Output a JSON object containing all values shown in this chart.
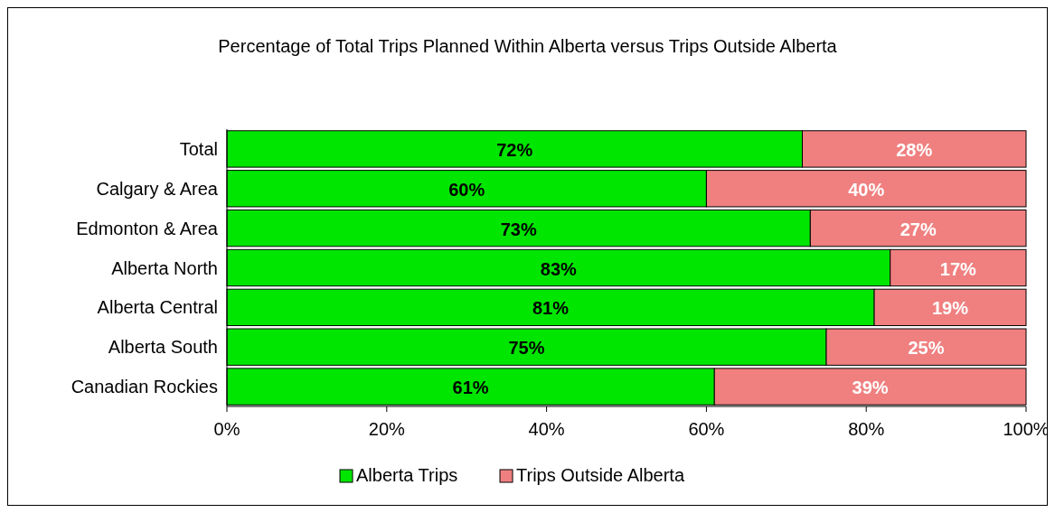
{
  "chart_data": {
    "type": "bar",
    "orientation": "horizontal",
    "stacked": true,
    "title": "Percentage of Total Trips Planned Within Alberta versus Trips Outside Alberta",
    "categories": [
      "Total",
      "Calgary & Area",
      "Edmonton & Area",
      "Alberta North",
      "Alberta Central",
      "Alberta South",
      "Canadian Rockies"
    ],
    "series": [
      {
        "name": "Alberta Trips",
        "color": "#00e600",
        "values": [
          72,
          60,
          73,
          83,
          81,
          75,
          61
        ],
        "value_labels": [
          "72%",
          "60%",
          "73%",
          "83%",
          "81%",
          "75%",
          "61%"
        ]
      },
      {
        "name": "Trips Outside Alberta",
        "color": "#f08080",
        "values": [
          28,
          40,
          27,
          17,
          19,
          25,
          39
        ],
        "value_labels": [
          "28%",
          "40%",
          "27%",
          "17%",
          "19%",
          "25%",
          "39%"
        ]
      }
    ],
    "xlim": [
      0,
      100
    ],
    "xticks": [
      {
        "value": 0,
        "label": "0%"
      },
      {
        "value": 20,
        "label": "20%"
      },
      {
        "value": 40,
        "label": "40%"
      },
      {
        "value": 60,
        "label": "60%"
      },
      {
        "value": 80,
        "label": "80%"
      },
      {
        "value": 100,
        "label": "100%"
      }
    ],
    "legend": "bottom",
    "grid": false
  }
}
